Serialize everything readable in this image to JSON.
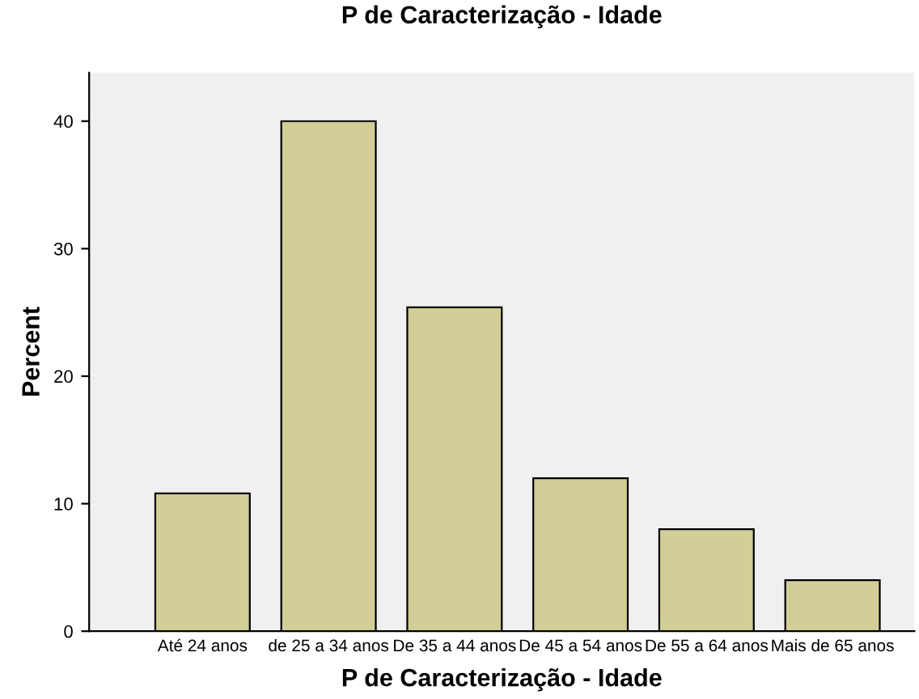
{
  "chart_data": {
    "type": "bar",
    "title": "P de Caracterização - Idade",
    "xlabel": "P de Caracterização - Idade",
    "ylabel": "Percent",
    "categories": [
      "Até 24 anos",
      "de 25 a 34 anos",
      "De 35 a 44 anos",
      "De 45 a 54 anos",
      "De 55 a 64 anos",
      "Mais de 65 anos"
    ],
    "values": [
      10.8,
      40.0,
      25.4,
      12.0,
      8.0,
      4.0
    ],
    "color": "#d3ce97",
    "ylim": [
      0,
      43.8
    ],
    "yticks": [
      0,
      10,
      20,
      30,
      40
    ],
    "grid": false,
    "legend": false
  }
}
